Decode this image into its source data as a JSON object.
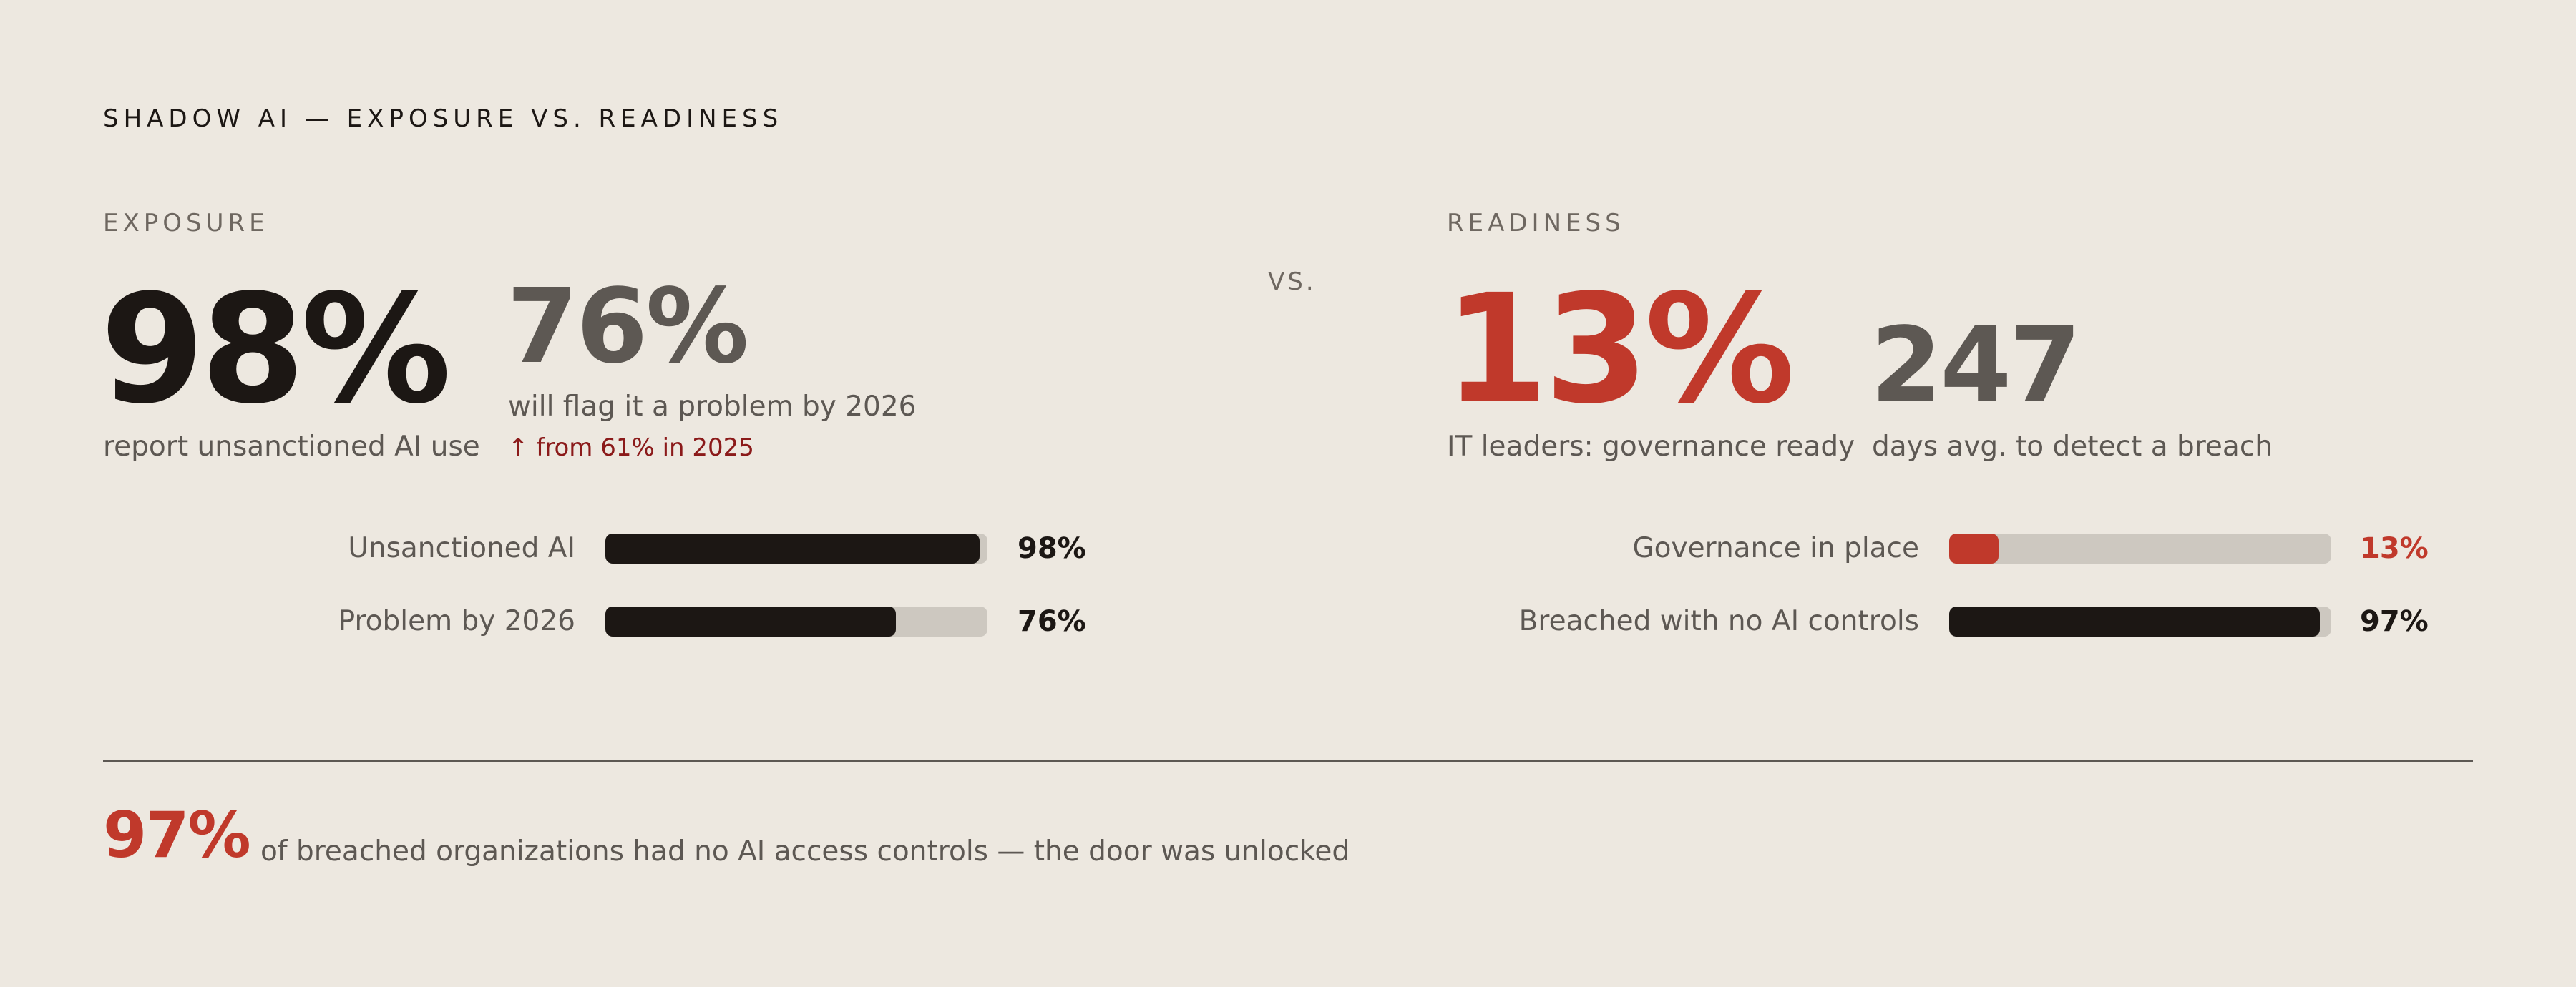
{
  "title": "SHADOW AI — EXPOSURE VS. READINESS",
  "vs_label": "VS.",
  "exposure": {
    "label": "EXPOSURE",
    "stat1": {
      "value": "98%",
      "caption": "report unsanctioned AI use"
    },
    "stat2": {
      "value": "76%",
      "caption": "will flag it a problem by 2026",
      "trend": "↑ from 61% in 2025"
    }
  },
  "readiness": {
    "label": "READINESS",
    "stat1": {
      "value": "13%",
      "caption": "IT leaders: governance ready"
    },
    "stat2": {
      "value": "247",
      "caption": "days avg. to detect a breach"
    }
  },
  "chart_data": [
    {
      "type": "bar",
      "orientation": "horizontal",
      "categories": [
        "Unsanctioned AI",
        "Problem by 2026"
      ],
      "values": [
        98,
        76
      ],
      "value_labels": [
        "98%",
        "76%"
      ],
      "xlim": [
        0,
        100
      ],
      "colors": [
        "#1c1714",
        "#1c1714"
      ]
    },
    {
      "type": "bar",
      "orientation": "horizontal",
      "categories": [
        "Governance in place",
        "Breached with no AI controls"
      ],
      "values": [
        13,
        97
      ],
      "value_labels": [
        "13%",
        "97%"
      ],
      "xlim": [
        0,
        100
      ],
      "colors": [
        "#c0392b",
        "#1c1714"
      ]
    }
  ],
  "footer": {
    "value": "97%",
    "text": "of breached organizations had no AI access controls — the door was unlocked"
  },
  "colors": {
    "background": "#ede8e0",
    "accent": "#c0392b",
    "dark": "#1c1714",
    "muted": "#5d5853",
    "track": "#cdc8c0"
  }
}
